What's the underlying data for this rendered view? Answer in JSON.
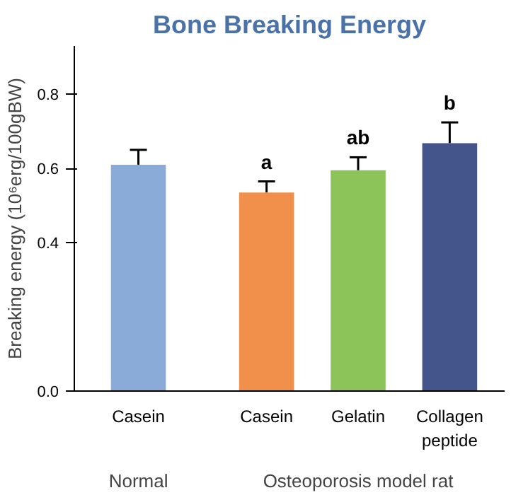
{
  "chart_data": {
    "type": "bar",
    "title": "Bone Breaking Energy",
    "ylabel": "Breaking energy (10⁶erg/100gBW)",
    "categories": [
      "Casein",
      "Casein",
      "Gelatin",
      "Collagen peptide"
    ],
    "values": [
      0.61,
      0.535,
      0.595,
      0.668
    ],
    "colors": [
      "#8aaad8",
      "#f0904a",
      "#8cc45a",
      "#44558c"
    ],
    "errors": [
      [
        0.61,
        0.65
      ],
      [
        0.535,
        0.565
      ],
      [
        0.595,
        0.63
      ],
      [
        0.668,
        0.724
      ]
    ],
    "value_labels": [
      null,
      "a",
      "ab",
      "b"
    ],
    "annotations": [
      "Normal",
      "Osteoporosis model rat"
    ],
    "ylim": [
      0,
      0.93
    ],
    "yticks": [
      {
        "value": 0,
        "label": "0.0"
      },
      0.4,
      0.6,
      0.8
    ],
    "grid": false
  }
}
